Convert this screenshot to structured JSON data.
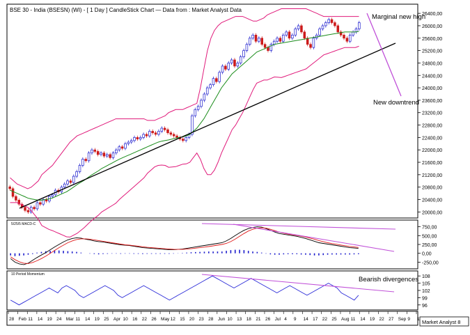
{
  "title": "BSE 30 - India (BSESN) (WI) -  [ 1 Day ] CandleStick Chart — Data from : Market Analyst Data",
  "watermark": "Market Analyst 8",
  "colors": {
    "up_candle": "#1a1acc",
    "down_candle": "#cc1a1a",
    "bollinger": "#e0197a",
    "moving_average": "#1a8c1a",
    "trendline": "#000000",
    "annotation_line": "#c050d8",
    "macd_line": "#000000",
    "signal_line": "#e01a1a",
    "histogram": "#1a1acc",
    "momentum_line": "#2b2bd8",
    "axis": "#000000",
    "grid_panel_bg": "#ffffff"
  },
  "annotations": {
    "marginal_high": "Marginal new high",
    "new_downtrend": "New downtrend",
    "bearish_divergences": "Bearish divergences"
  },
  "x_axis": {
    "labels": [
      "28",
      "Feb",
      "11",
      "14",
      "19",
      "24",
      "Mar",
      "11",
      "14",
      "19",
      "25",
      "Apr",
      "10",
      "16",
      "22",
      "26",
      "May",
      "12",
      "15",
      "20",
      "23",
      "28",
      "Jun",
      "10",
      "13",
      "18",
      "21",
      "26",
      "Jul",
      "4",
      "9",
      "14",
      "17",
      "22",
      "25",
      "Aug",
      "11",
      "14",
      "19",
      "22",
      "27",
      "Sep",
      "9",
      "12"
    ]
  },
  "chart_data": [
    {
      "type": "candlestick",
      "title": "BSE 30 - India (BSESN) (WI) - [ 1 Day ] CandleStick Chart",
      "y_ticks": [
        20000,
        20400,
        20800,
        21200,
        21600,
        22000,
        22400,
        22800,
        23200,
        23600,
        24000,
        24400,
        24800,
        25200,
        25600,
        26000,
        26400
      ],
      "ylim": [
        19850,
        26650
      ],
      "close": [
        20750,
        20500,
        20380,
        20250,
        20150,
        20050,
        20000,
        20150,
        20100,
        20300,
        20250,
        20400,
        20350,
        20500,
        20550,
        20700,
        20650,
        20800,
        20900,
        21000,
        20950,
        21150,
        21300,
        21500,
        21700,
        21650,
        21900,
        22000,
        21950,
        21850,
        21900,
        21800,
        21850,
        21750,
        21900,
        22000,
        22100,
        22050,
        22200,
        22250,
        22300,
        22400,
        22350,
        22400,
        22500,
        22450,
        22600,
        22550,
        22500,
        22600,
        22700,
        22650,
        22550,
        22500,
        22450,
        22400,
        22350,
        22300,
        22400,
        22500,
        23100,
        23300,
        23400,
        23600,
        23800,
        24000,
        24100,
        24300,
        24200,
        24500,
        24700,
        24600,
        24800,
        24900,
        24700,
        24800,
        25000,
        25200,
        25400,
        25600,
        25700,
        25500,
        25600,
        25400,
        25300,
        25200,
        25400,
        25500,
        25600,
        25500,
        25700,
        25800,
        25600,
        25700,
        25900,
        26000,
        25800,
        25600,
        25400,
        25300,
        25600,
        25700,
        25900,
        26000,
        26100,
        26200,
        26100,
        26000,
        25800,
        25700,
        25600,
        25500,
        25700,
        25800,
        25900,
        26100
      ],
      "bollinger_upper": [
        21100,
        21000,
        20900,
        20850,
        20800,
        20750,
        20800,
        20900,
        21000,
        21200,
        21300,
        21400,
        21500,
        21650,
        21800,
        21950,
        22100,
        22250,
        22350,
        22450,
        22500,
        22550,
        22600,
        22650,
        22700,
        22750,
        22800,
        22850,
        22900,
        22950,
        23000,
        23000,
        23000,
        23000,
        23000,
        23000,
        23000,
        23000,
        23000,
        22950,
        22950,
        22950,
        23000,
        23050,
        23100,
        23200,
        23250,
        23300,
        23300,
        23300,
        23350,
        23400,
        23450,
        23500,
        24000,
        24600,
        25200,
        25600,
        25850,
        26000,
        26100,
        26150,
        26200,
        26250,
        26300,
        26300,
        26300,
        26250,
        26200,
        26150,
        26150,
        26200,
        26250,
        26350,
        26400,
        26450,
        26500,
        26550,
        26550,
        26550,
        26550,
        26550,
        26550,
        26550,
        26550,
        26500,
        26450,
        26400,
        26350,
        26300,
        26300,
        26300,
        26300,
        26300,
        26300,
        26300,
        26300,
        26300,
        26300,
        26300
      ],
      "moving_average": [
        20700,
        20650,
        20600,
        20550,
        20500,
        20450,
        20420,
        20400,
        20380,
        20380,
        20400,
        20420,
        20450,
        20500,
        20550,
        20600,
        20650,
        20720,
        20800,
        20880,
        20950,
        21020,
        21100,
        21180,
        21250,
        21320,
        21400,
        21460,
        21520,
        21580,
        21640,
        21700,
        21750,
        21800,
        21850,
        21900,
        21950,
        22000,
        22050,
        22100,
        22150,
        22200,
        22250,
        22280,
        22300,
        22320,
        22350,
        22380,
        22400,
        22420,
        22450,
        22500,
        22600,
        22700,
        22850,
        23000,
        23200,
        23400,
        23600,
        23800,
        24000,
        24150,
        24300,
        24450,
        24550,
        24650,
        24750,
        24850,
        24950,
        25050,
        25150,
        25200,
        25250,
        25300,
        25350,
        25400,
        25420,
        25440,
        25460,
        25480,
        25500,
        25520,
        25540,
        25560,
        25580,
        25600,
        25620,
        25640,
        25660,
        25680,
        25700,
        25720,
        25740,
        25760,
        25780,
        25800,
        25800,
        25800,
        25800,
        25820
      ]
    },
    {
      "type": "line",
      "title": "5/25/5 MACD-C",
      "y_ticks": [
        -250,
        0,
        250,
        500,
        750
      ],
      "ylim": [
        -400,
        900
      ],
      "series": [
        {
          "values": [
            -150,
            -250,
            -300,
            -320,
            -280,
            -200,
            -120,
            -50,
            20,
            100,
            180,
            250,
            320,
            380,
            420,
            440,
            430,
            400,
            380,
            350,
            330,
            320,
            300,
            280,
            260,
            240,
            230,
            220,
            200,
            180,
            160,
            150,
            140,
            130,
            120,
            110,
            100,
            100,
            110,
            120,
            140,
            160,
            180,
            200,
            220,
            240,
            260,
            280,
            300,
            350,
            420,
            500,
            580,
            650,
            700,
            730,
            750,
            740,
            700,
            650,
            600,
            560,
            540,
            520,
            500,
            480,
            450,
            420,
            380,
            340,
            300,
            280,
            260,
            240,
            220,
            200,
            180,
            160,
            150,
            140
          ]
        },
        {
          "values": [
            -100,
            -180,
            -240,
            -280,
            -290,
            -260,
            -210,
            -150,
            -80,
            0,
            80,
            160,
            230,
            300,
            350,
            390,
            410,
            410,
            400,
            380,
            360,
            340,
            320,
            300,
            280,
            260,
            240,
            230,
            215,
            200,
            185,
            170,
            160,
            150,
            140,
            130,
            120,
            112,
            110,
            112,
            120,
            130,
            145,
            160,
            175,
            190,
            210,
            230,
            250,
            280,
            330,
            400,
            480,
            560,
            630,
            680,
            710,
            720,
            710,
            680,
            640,
            600,
            570,
            545,
            525,
            505,
            485,
            460,
            430,
            400,
            360,
            330,
            300,
            275,
            255,
            235,
            215,
            195,
            180,
            165
          ]
        }
      ],
      "histogram": [
        -60,
        -80,
        -70,
        -60,
        -40,
        -20,
        20,
        40,
        60,
        70,
        80,
        80,
        70,
        60,
        50,
        40,
        20,
        0,
        -10,
        -20,
        -30,
        -20,
        -15,
        -10,
        -10,
        -15,
        -10,
        -10,
        -15,
        -15,
        -20,
        -15,
        -15,
        -15,
        -15,
        -15,
        -15,
        -10,
        5,
        10,
        20,
        30,
        35,
        40,
        45,
        50,
        50,
        50,
        50,
        70,
        90,
        100,
        100,
        90,
        70,
        50,
        40,
        20,
        -10,
        -30,
        -40,
        -40,
        -30,
        -25,
        -25,
        -25,
        -35,
        -40,
        -50,
        -60,
        -60,
        -50,
        -40,
        -35,
        -35,
        -35,
        -35,
        -35,
        -30,
        -25
      ]
    },
    {
      "type": "line",
      "title": "10 Period Momentum",
      "y_ticks": [
        96,
        99,
        102,
        105,
        108
      ],
      "ylim": [
        94.5,
        109.5
      ],
      "series": [
        {
          "values": [
            98,
            97,
            96,
            97,
            98,
            99,
            100,
            101,
            102,
            103,
            102,
            101,
            103,
            104,
            103,
            102,
            100,
            99,
            100,
            101,
            102,
            103,
            104,
            103,
            102,
            100,
            99,
            100,
            101,
            102,
            103,
            104,
            103,
            102,
            101,
            100,
            99,
            98,
            99,
            100,
            101,
            102,
            103,
            104,
            105,
            106,
            107,
            108,
            107,
            106,
            105,
            104,
            103,
            104,
            105,
            106,
            107,
            106,
            105,
            104,
            103,
            102,
            101,
            102,
            103,
            104,
            103,
            102,
            101,
            100,
            101,
            102,
            103,
            104,
            105,
            104,
            103,
            101,
            100,
            99,
            98,
            100
          ]
        }
      ]
    }
  ]
}
